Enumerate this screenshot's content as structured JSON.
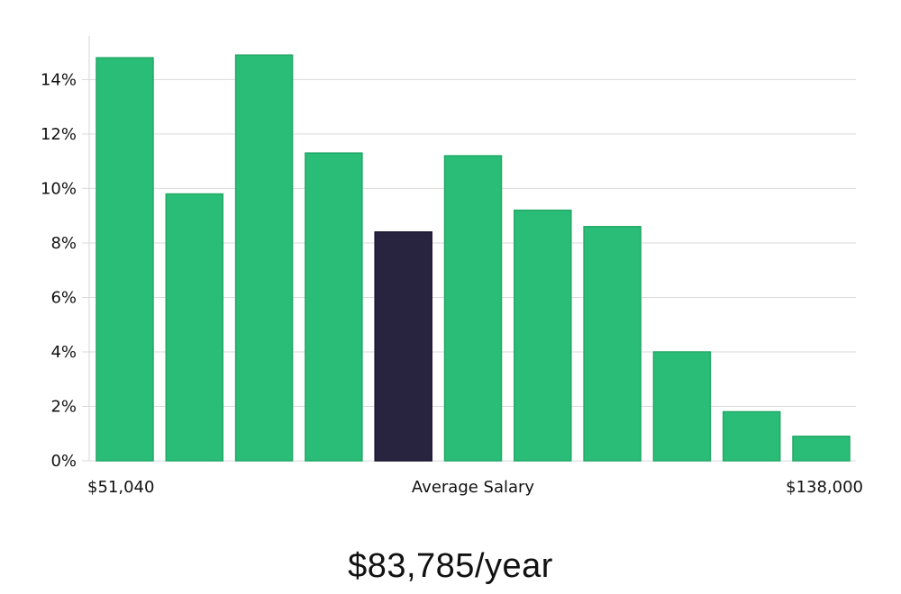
{
  "chart_data": {
    "type": "bar",
    "categories": [
      "1",
      "2",
      "3",
      "4",
      "5",
      "6",
      "7",
      "8",
      "9",
      "10",
      "11"
    ],
    "values": [
      14.8,
      9.8,
      14.9,
      11.3,
      8.4,
      11.2,
      9.2,
      8.6,
      4.0,
      1.8,
      0.9
    ],
    "highlight_index": 4,
    "y_ticks": [
      "0%",
      "2%",
      "4%",
      "6%",
      "8%",
      "10%",
      "12%",
      "14%"
    ],
    "ylim": [
      0,
      15.6
    ],
    "x_left_label": "$51,040",
    "x_center_label": "Average Salary",
    "x_right_label": "$138,000",
    "grid": true,
    "colors": {
      "bar": "#2abd77",
      "highlight": "#28233f",
      "grid": "#d9d9de",
      "axis": "#cfcfd4"
    }
  },
  "salary": {
    "caption": "$83,785/year"
  }
}
